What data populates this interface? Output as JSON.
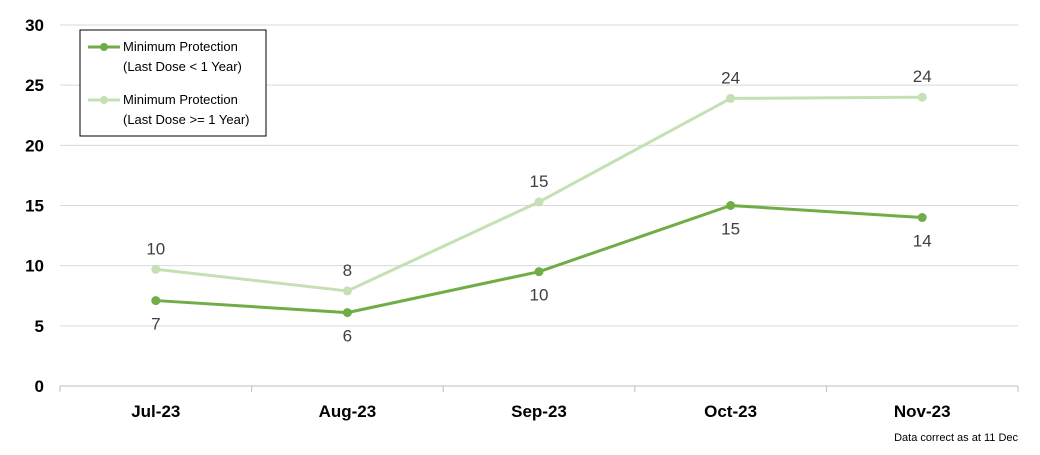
{
  "chart_data": {
    "type": "line",
    "categories": [
      "Jul-23",
      "Aug-23",
      "Sep-23",
      "Oct-23",
      "Nov-23"
    ],
    "series": [
      {
        "name_line1": "Minimum Protection",
        "name_line2": "(Last Dose < 1 Year)",
        "values": [
          7.1,
          6.1,
          9.5,
          15.0,
          14.0
        ],
        "labels": [
          "7",
          "6",
          "10",
          "15",
          "14"
        ],
        "label_position": "below",
        "color": "#70ad47"
      },
      {
        "name_line1": "Minimum Protection",
        "name_line2": "(Last Dose >= 1 Year)",
        "values": [
          9.7,
          7.9,
          15.3,
          23.9,
          24.0
        ],
        "labels": [
          "10",
          "8",
          "15",
          "24",
          "24"
        ],
        "label_position": "above",
        "color": "#c5e0b4"
      }
    ],
    "ylim": [
      0,
      30
    ],
    "yticks": [
      "0",
      "5",
      "10",
      "15",
      "20",
      "25",
      "30"
    ],
    "ytick_values": [
      0,
      5,
      10,
      15,
      20,
      25,
      30
    ],
    "grid": true,
    "legend_position": "top-left",
    "footnote": "Data correct as at 11 Dec"
  }
}
